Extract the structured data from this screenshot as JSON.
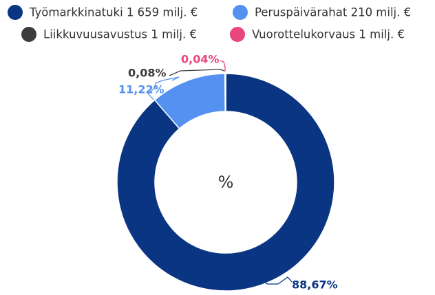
{
  "chart_data": {
    "type": "pie",
    "categories": [
      "Työmarkkinatuki 1 659 milj. €",
      "Peruspäivärahat 210 milj. €",
      "Liikkuvuusavustus 1 milj. €",
      "Vuorottelukorvaus 1 milj. €"
    ],
    "values": [
      88.67,
      11.22,
      0.08,
      0.04
    ],
    "value_labels": [
      "88,67%",
      "11,22%",
      "0,08%",
      "0,04%"
    ],
    "colors": [
      "#0a3582",
      "#5491f0",
      "#3c3c3c",
      "#e8467c"
    ],
    "center_label": "%"
  }
}
